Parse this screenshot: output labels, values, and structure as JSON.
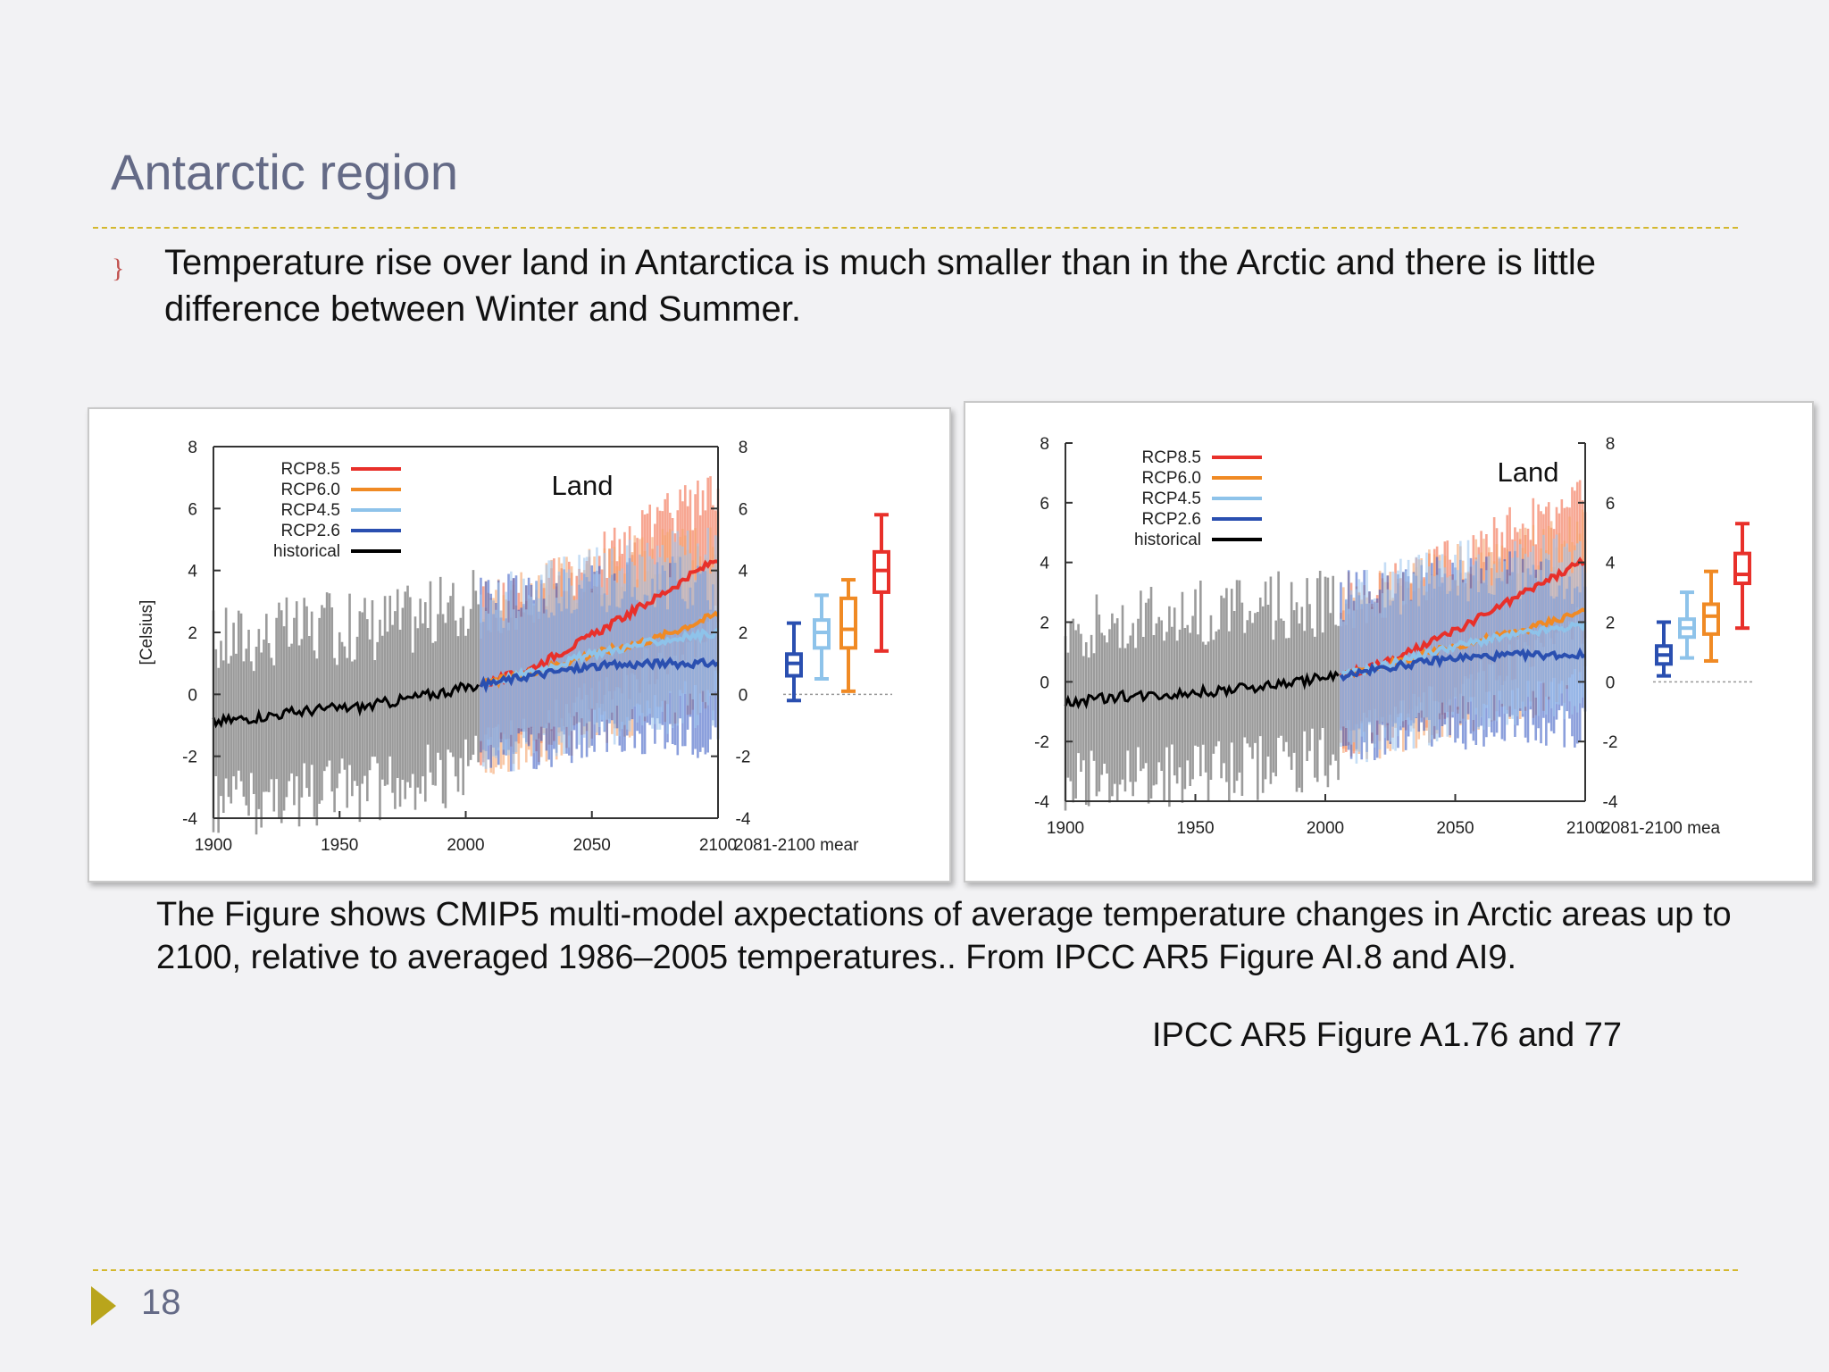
{
  "slide": {
    "title": "Antarctic region",
    "bullet_marker": "}",
    "bullet": "Temperature rise over land in Antarctica is much smaller than in the Arctic and there is little difference between Winter and Summer.",
    "caption": "The Figure shows CMIP5 multi-model axpectations of average temperature changes in Arctic areas up to 2100, relative to averaged 1986–2005 temperatures.. From IPCC AR5 Figure AI.8 and AI9.",
    "credit": "IPCC AR5 Figure A1.76 and 77",
    "page_number": "18"
  },
  "chart_data": [
    {
      "type": "line",
      "panel_label": "Land",
      "ylabel": "[Celsius]",
      "xlim": [
        1900,
        2100
      ],
      "ylim": [
        -4,
        8
      ],
      "x_ticks": [
        1900,
        1950,
        2000,
        2050,
        2100
      ],
      "y_ticks": [
        8,
        6,
        4,
        2,
        0,
        -2,
        -4
      ],
      "y_tick_labels": [
        "8",
        "6",
        "4",
        "2",
        "0",
        "-2",
        "-4"
      ],
      "x_tick_labels": [
        "1900",
        "1950",
        "2000",
        "2050",
        "2100"
      ],
      "boxplot_label": "2081-2100 mear",
      "historical": {
        "x": [
          1900,
          1920,
          1940,
          1960,
          1980,
          2005
        ],
        "y": [
          -0.9,
          -0.7,
          -0.5,
          -0.4,
          -0.1,
          0.3
        ]
      },
      "series": [
        {
          "name": "RCP8.5",
          "color": "#e8302a",
          "x": [
            2006,
            2025,
            2050,
            2075,
            2100
          ],
          "y": [
            0.3,
            0.8,
            1.9,
            3.1,
            4.4
          ]
        },
        {
          "name": "RCP6.0",
          "color": "#f08a24",
          "x": [
            2006,
            2025,
            2050,
            2075,
            2100
          ],
          "y": [
            0.3,
            0.7,
            1.3,
            1.8,
            2.6
          ]
        },
        {
          "name": "RCP4.5",
          "color": "#8ec3ea",
          "x": [
            2006,
            2025,
            2050,
            2075,
            2100
          ],
          "y": [
            0.3,
            0.7,
            1.3,
            1.7,
            2.0
          ]
        },
        {
          "name": "RCP2.6",
          "color": "#2a4fb0",
          "x": [
            2006,
            2025,
            2050,
            2075,
            2100
          ],
          "y": [
            0.3,
            0.6,
            0.9,
            1.0,
            1.0
          ]
        },
        {
          "name": "historical",
          "color": "#000000"
        }
      ],
      "boxplots": [
        {
          "name": "RCP2.6",
          "color": "#2a4fb0",
          "min": -0.2,
          "q1": 0.6,
          "median": 1.0,
          "q3": 1.3,
          "max": 2.3
        },
        {
          "name": "RCP4.5",
          "color": "#8ec3ea",
          "min": 0.5,
          "q1": 1.5,
          "median": 2.0,
          "q3": 2.4,
          "max": 3.2
        },
        {
          "name": "RCP6.0",
          "color": "#f08a24",
          "min": 0.1,
          "q1": 1.5,
          "median": 2.1,
          "q3": 3.1,
          "max": 3.7
        },
        {
          "name": "RCP8.5",
          "color": "#e8302a",
          "min": 1.4,
          "q1": 3.3,
          "median": 4.0,
          "q3": 4.6,
          "max": 5.8
        }
      ]
    },
    {
      "type": "line",
      "panel_label": "Land",
      "ylabel": "",
      "xlim": [
        1900,
        2100
      ],
      "ylim": [
        -4,
        8
      ],
      "x_ticks": [
        1900,
        1950,
        2000,
        2050,
        2100
      ],
      "y_ticks": [
        8,
        6,
        4,
        2,
        0,
        -2,
        -4
      ],
      "y_tick_labels": [
        "8",
        "6",
        "4",
        "2",
        "0",
        "-2",
        "-4"
      ],
      "x_tick_labels": [
        "1900",
        "1950",
        "2000",
        "2050",
        "2100"
      ],
      "boxplot_label": "2081-2100 mea",
      "historical": {
        "x": [
          1900,
          1920,
          1940,
          1960,
          1980,
          2005
        ],
        "y": [
          -0.7,
          -0.5,
          -0.4,
          -0.3,
          -0.1,
          0.2
        ]
      },
      "series": [
        {
          "name": "RCP8.5",
          "color": "#e8302a",
          "x": [
            2006,
            2025,
            2050,
            2075,
            2100
          ],
          "y": [
            0.2,
            0.7,
            1.7,
            2.9,
            4.1
          ]
        },
        {
          "name": "RCP6.0",
          "color": "#f08a24",
          "x": [
            2006,
            2025,
            2050,
            2075,
            2100
          ],
          "y": [
            0.2,
            0.6,
            1.2,
            1.7,
            2.4
          ]
        },
        {
          "name": "RCP4.5",
          "color": "#8ec3ea",
          "x": [
            2006,
            2025,
            2050,
            2075,
            2100
          ],
          "y": [
            0.2,
            0.6,
            1.2,
            1.6,
            1.9
          ]
        },
        {
          "name": "RCP2.6",
          "color": "#2a4fb0",
          "x": [
            2006,
            2025,
            2050,
            2075,
            2100
          ],
          "y": [
            0.2,
            0.5,
            0.8,
            0.9,
            0.9
          ]
        },
        {
          "name": "historical",
          "color": "#000000"
        }
      ],
      "boxplots": [
        {
          "name": "RCP2.6",
          "color": "#2a4fb0",
          "min": 0.2,
          "q1": 0.6,
          "median": 0.9,
          "q3": 1.2,
          "max": 2.0
        },
        {
          "name": "RCP4.5",
          "color": "#8ec3ea",
          "min": 0.8,
          "q1": 1.5,
          "median": 1.8,
          "q3": 2.1,
          "max": 3.0
        },
        {
          "name": "RCP6.0",
          "color": "#f08a24",
          "min": 0.7,
          "q1": 1.6,
          "median": 2.2,
          "q3": 2.6,
          "max": 3.7
        },
        {
          "name": "RCP8.5",
          "color": "#e8302a",
          "min": 1.8,
          "q1": 3.3,
          "median": 3.6,
          "q3": 4.3,
          "max": 5.3
        }
      ]
    }
  ]
}
